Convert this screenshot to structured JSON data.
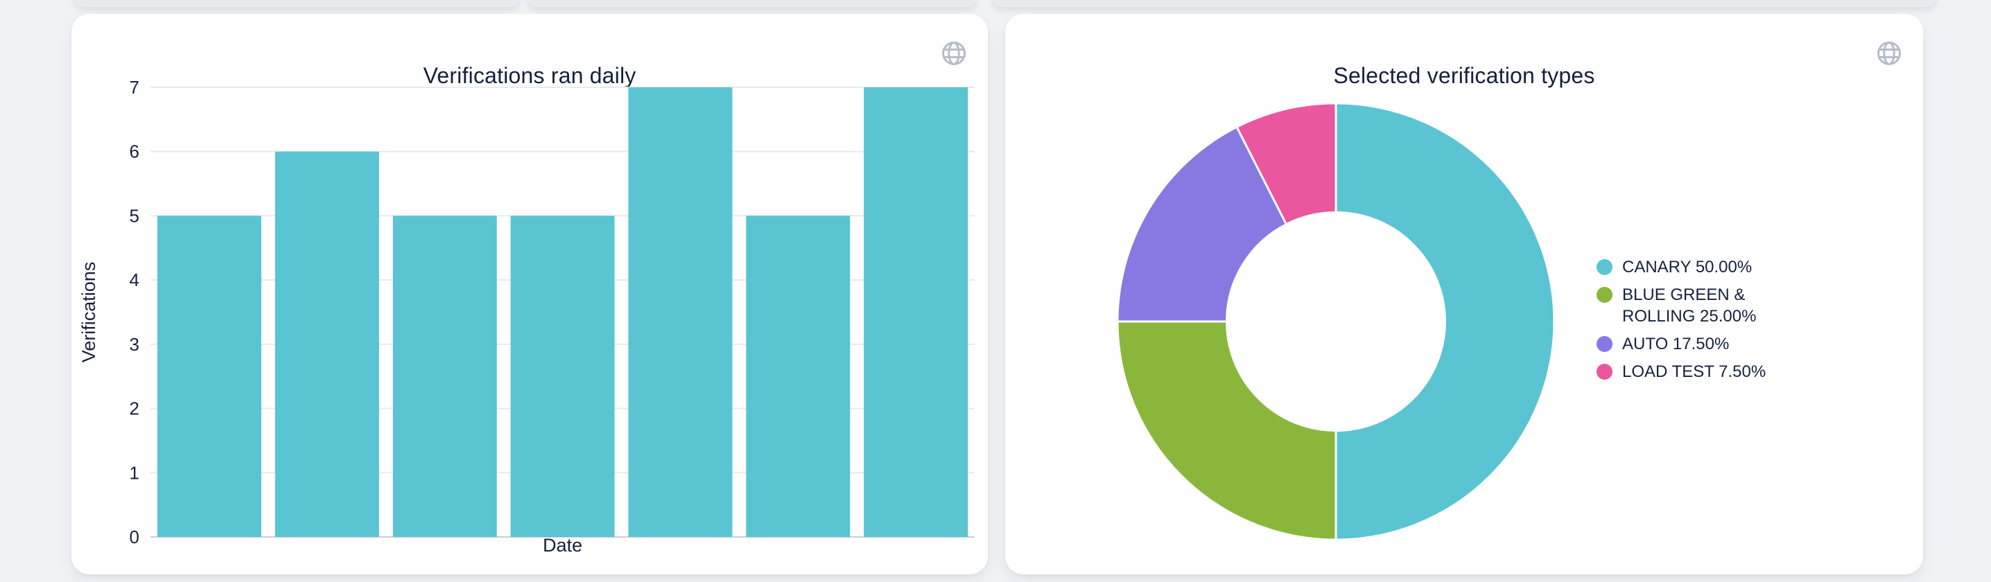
{
  "page": {
    "background_color": "#f0f2f5",
    "card_color": "#ffffff",
    "text_color": "#15213d"
  },
  "bar_card": {
    "header_icon": "globe-icon",
    "icon_color": "#b6bcc8"
  },
  "pie_card": {
    "header_icon": "globe-icon",
    "icon_color": "#b6bcc8"
  },
  "chart_data": [
    {
      "type": "bar",
      "title": "Verifications ran daily",
      "xlabel": "Date",
      "ylabel": "Verifications",
      "categories": [
        "",
        "",
        "",
        "",
        "",
        "",
        ""
      ],
      "values": [
        5,
        6,
        5,
        5,
        7,
        5,
        7
      ],
      "ylim": [
        0,
        7
      ],
      "yticks": [
        0,
        1,
        2,
        3,
        4,
        5,
        6,
        7
      ],
      "x_tick_labels_visible": false,
      "bar_color": "#5ac4d3",
      "grid": true,
      "gridline_color": "#e8eaef",
      "axis_line_color": "#c9cfd9",
      "legend_position": "none"
    },
    {
      "type": "pie",
      "title": "Selected verification types",
      "donut": true,
      "hole_ratio": 0.5,
      "start_angle": "top",
      "direction": "clockwise",
      "slice_border_color": "#ffffff",
      "legend_position": "right",
      "slices": [
        {
          "label": "CANARY",
          "percent": 50.0,
          "color": "#5ac4d3",
          "legend_label": "CANARY 50.00%"
        },
        {
          "label": "BLUE GREEN & ROLLING",
          "percent": 25.0,
          "color": "#8ab63c",
          "legend_label": "BLUE GREEN & ROLLING 25.00%"
        },
        {
          "label": "AUTO",
          "percent": 17.5,
          "color": "#8778e2",
          "legend_label": "AUTO 17.50%"
        },
        {
          "label": "LOAD TEST",
          "percent": 7.5,
          "color": "#ea579e",
          "legend_label": "LOAD TEST 7.50%"
        }
      ]
    }
  ]
}
